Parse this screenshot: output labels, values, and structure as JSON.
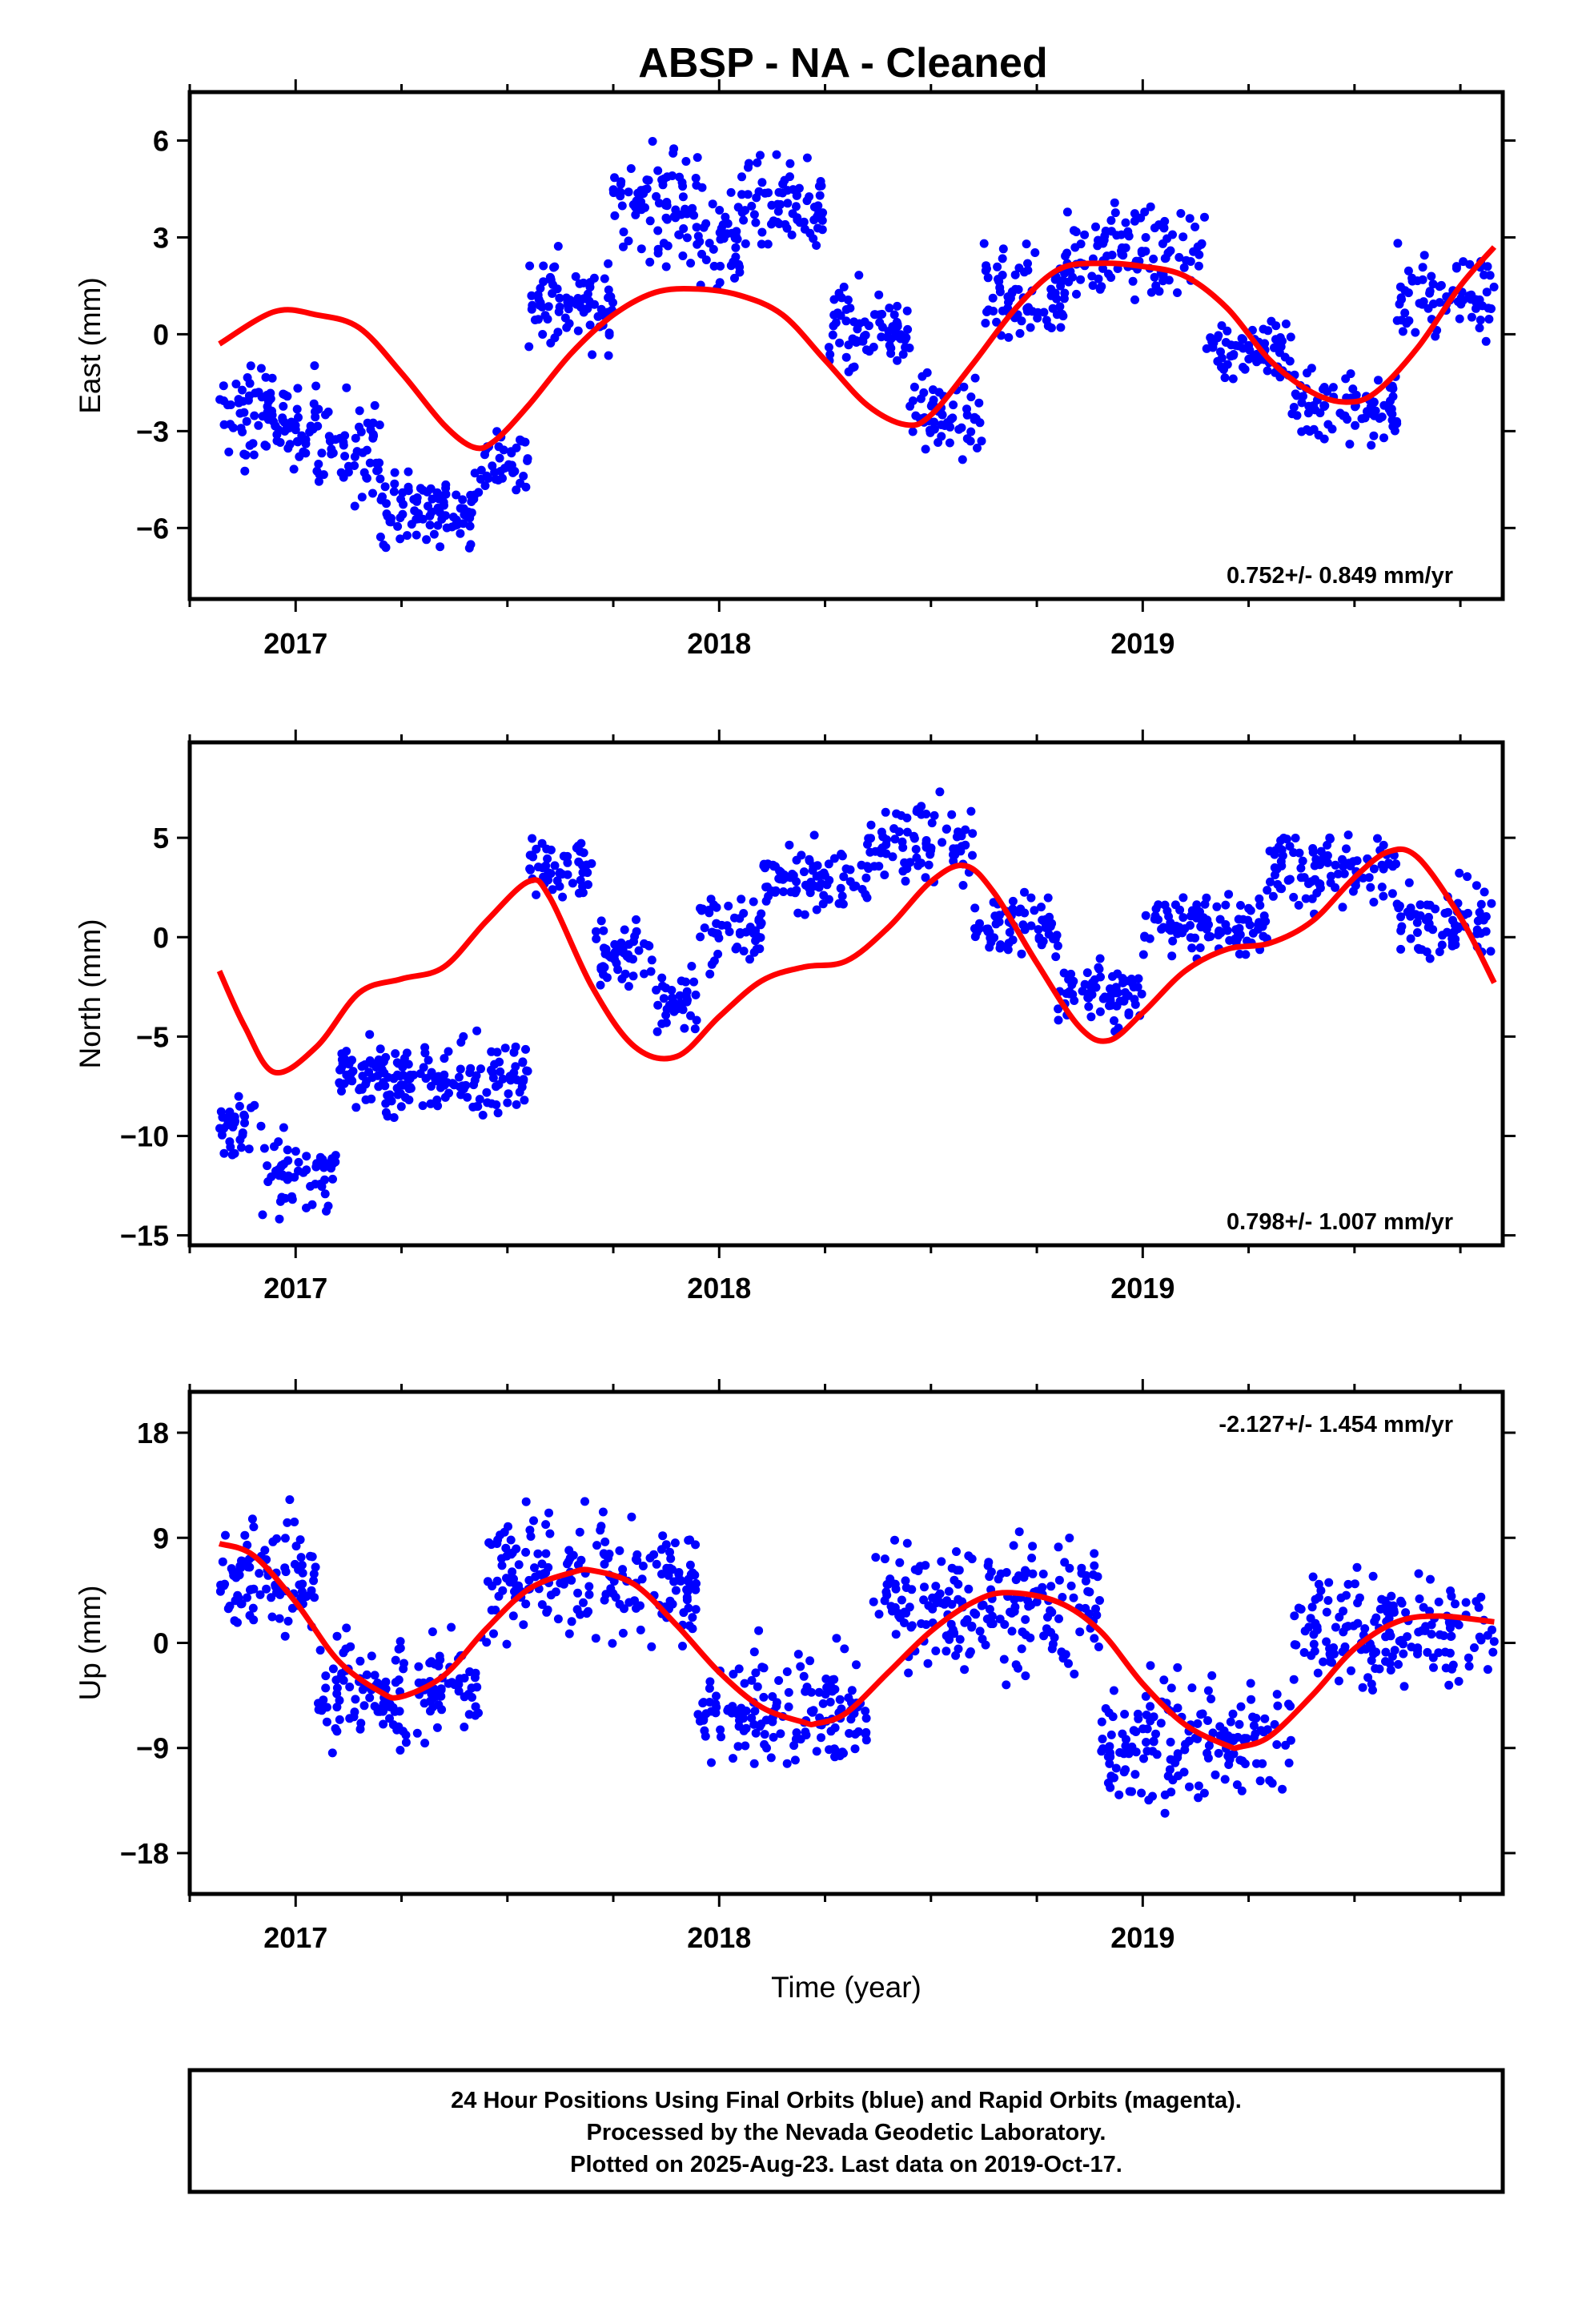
{
  "title": "ABSP  - NA - Cleaned",
  "colors": {
    "data": "#0000ff",
    "model": "#ff0000",
    "frame": "#000000"
  },
  "chart_data": [
    {
      "type": "scatter",
      "name": "east",
      "ylabel": "East (mm)",
      "xlabel": "",
      "xlim": [
        2016.75,
        2019.85
      ],
      "ylim": [
        -8.2,
        7.5
      ],
      "yticks": [
        -6,
        -3,
        0,
        3,
        6
      ],
      "ytick_labels": [
        "−6",
        "−3",
        "0",
        "3",
        "6"
      ],
      "xticks": [
        2017,
        2018,
        2019
      ],
      "xtick_labels": [
        "2017",
        "2018",
        "2019"
      ],
      "rate": "0.752+/- 0.849 mm/yr",
      "rate_position": "bottom-right",
      "model": {
        "x": [
          2016.82,
          2016.95,
          2017.05,
          2017.15,
          2017.25,
          2017.35,
          2017.42,
          2017.47,
          2017.55,
          2017.65,
          2017.75,
          2017.85,
          2017.95,
          2018.05,
          2018.15,
          2018.25,
          2018.35,
          2018.44,
          2018.5,
          2018.6,
          2018.7,
          2018.8,
          2018.9,
          2019.0,
          2019.1,
          2019.2,
          2019.3,
          2019.4,
          2019.48,
          2019.55,
          2019.65,
          2019.75,
          2019.83
        ],
        "y": [
          -0.3,
          0.7,
          0.6,
          0.2,
          -1.2,
          -2.8,
          -3.5,
          -3.3,
          -2.2,
          -0.6,
          0.6,
          1.3,
          1.4,
          1.2,
          0.6,
          -0.8,
          -2.2,
          -2.8,
          -2.5,
          -0.9,
          0.8,
          2.0,
          2.2,
          2.1,
          1.8,
          0.8,
          -0.8,
          -1.8,
          -2.1,
          -1.8,
          -0.4,
          1.5,
          2.7
        ]
      },
      "points": [
        {
          "x0": 2016.82,
          "x1": 2017.05,
          "mean": -2.6,
          "spread": 1.2,
          "count": 95
        },
        {
          "x0": 2017.05,
          "x1": 2017.2,
          "mean": -3.6,
          "spread": 1.4,
          "count": 55
        },
        {
          "x0": 2017.2,
          "x1": 2017.43,
          "mean": -5.4,
          "spread": 0.9,
          "count": 90
        },
        {
          "x0": 2017.43,
          "x1": 2017.55,
          "mean": -4.0,
          "spread": 1.0,
          "count": 40
        },
        {
          "x0": 2017.55,
          "x1": 2017.75,
          "mean": 1.0,
          "spread": 1.1,
          "count": 80
        },
        {
          "x0": 2017.75,
          "x1": 2017.95,
          "mean": 4.0,
          "spread": 1.5,
          "count": 80
        },
        {
          "x0": 2017.95,
          "x1": 2018.05,
          "mean": 2.8,
          "spread": 1.4,
          "count": 40
        },
        {
          "x0": 2018.05,
          "x1": 2018.25,
          "mean": 3.8,
          "spread": 1.2,
          "count": 75
        },
        {
          "x0": 2018.25,
          "x1": 2018.45,
          "mean": 0.2,
          "spread": 1.1,
          "count": 75
        },
        {
          "x0": 2018.45,
          "x1": 2018.62,
          "mean": -2.5,
          "spread": 1.0,
          "count": 60
        },
        {
          "x0": 2018.62,
          "x1": 2018.82,
          "mean": 1.2,
          "spread": 1.1,
          "count": 75
        },
        {
          "x0": 2018.82,
          "x1": 2019.15,
          "mean": 2.6,
          "spread": 1.1,
          "count": 110
        },
        {
          "x0": 2019.15,
          "x1": 2019.35,
          "mean": -0.5,
          "spread": 0.9,
          "count": 70
        },
        {
          "x0": 2019.35,
          "x1": 2019.6,
          "mean": -2.2,
          "spread": 1.0,
          "count": 85
        },
        {
          "x0": 2019.6,
          "x1": 2019.83,
          "mean": 1.2,
          "spread": 1.2,
          "count": 75
        }
      ]
    },
    {
      "type": "scatter",
      "name": "north",
      "ylabel": "North (mm)",
      "xlabel": "",
      "xlim": [
        2016.75,
        2019.85
      ],
      "ylim": [
        -15.5,
        9.8
      ],
      "yticks": [
        -15,
        -10,
        -5,
        0,
        5
      ],
      "ytick_labels": [
        "−15",
        "−10",
        "−5",
        "0",
        "5"
      ],
      "xticks": [
        2017,
        2018,
        2019
      ],
      "xtick_labels": [
        "2017",
        "2018",
        "2019"
      ],
      "rate": "0.798+/- 1.007 mm/yr",
      "rate_position": "bottom-right",
      "model": {
        "x": [
          2016.82,
          2016.88,
          2016.95,
          2017.05,
          2017.15,
          2017.25,
          2017.35,
          2017.45,
          2017.55,
          2017.6,
          2017.7,
          2017.8,
          2017.9,
          2018.0,
          2018.1,
          2018.2,
          2018.3,
          2018.4,
          2018.5,
          2018.58,
          2018.65,
          2018.75,
          2018.85,
          2018.92,
          2019.0,
          2019.1,
          2019.2,
          2019.3,
          2019.4,
          2019.5,
          2019.58,
          2019.65,
          2019.75,
          2019.83
        ],
        "y": [
          -1.7,
          -4.5,
          -6.8,
          -5.5,
          -2.8,
          -2.1,
          -1.5,
          0.8,
          2.8,
          2.0,
          -2.5,
          -5.5,
          -6.0,
          -4.0,
          -2.2,
          -1.5,
          -1.2,
          0.5,
          2.8,
          3.6,
          2.2,
          -1.3,
          -4.5,
          -5.2,
          -3.8,
          -1.7,
          -0.6,
          -0.3,
          0.8,
          3.0,
          4.3,
          4.0,
          1.0,
          -2.3
        ]
      },
      "points": [
        {
          "x0": 2016.82,
          "x1": 2016.92,
          "mean": -9.5,
          "spread": 1.2,
          "count": 35
        },
        {
          "x0": 2016.92,
          "x1": 2017.1,
          "mean": -12.0,
          "spread": 1.4,
          "count": 60
        },
        {
          "x0": 2017.1,
          "x1": 2017.55,
          "mean": -7.0,
          "spread": 1.4,
          "count": 180
        },
        {
          "x0": 2017.55,
          "x1": 2017.7,
          "mean": 3.5,
          "spread": 1.3,
          "count": 50
        },
        {
          "x0": 2017.7,
          "x1": 2017.85,
          "mean": -1.0,
          "spread": 1.6,
          "count": 50
        },
        {
          "x0": 2017.85,
          "x1": 2017.95,
          "mean": -3.5,
          "spread": 1.4,
          "count": 35
        },
        {
          "x0": 2017.95,
          "x1": 2018.1,
          "mean": 0.3,
          "spread": 1.4,
          "count": 50
        },
        {
          "x0": 2018.1,
          "x1": 2018.35,
          "mean": 2.8,
          "spread": 1.4,
          "count": 80
        },
        {
          "x0": 2018.35,
          "x1": 2018.6,
          "mean": 4.8,
          "spread": 1.5,
          "count": 80
        },
        {
          "x0": 2018.6,
          "x1": 2018.8,
          "mean": 0.5,
          "spread": 1.5,
          "count": 70
        },
        {
          "x0": 2018.8,
          "x1": 2019.0,
          "mean": -2.8,
          "spread": 1.3,
          "count": 70
        },
        {
          "x0": 2019.0,
          "x1": 2019.3,
          "mean": 0.6,
          "spread": 1.3,
          "count": 100
        },
        {
          "x0": 2019.3,
          "x1": 2019.6,
          "mean": 3.5,
          "spread": 1.5,
          "count": 100
        },
        {
          "x0": 2019.6,
          "x1": 2019.83,
          "mean": 0.8,
          "spread": 1.5,
          "count": 75
        }
      ]
    },
    {
      "type": "scatter",
      "name": "up",
      "ylabel": "Up (mm)",
      "xlabel": "Time (year)",
      "xlim": [
        2016.75,
        2019.85
      ],
      "ylim": [
        -21.5,
        21.5
      ],
      "yticks": [
        -18,
        -9,
        0,
        9,
        18
      ],
      "ytick_labels": [
        "−18",
        "−9",
        "0",
        "9",
        "18"
      ],
      "xticks": [
        2017,
        2018,
        2019
      ],
      "xtick_labels": [
        "2017",
        "2018",
        "2019"
      ],
      "rate": "-2.127+/- 1.454 mm/yr",
      "rate_position": "top-right",
      "model": {
        "x": [
          2016.82,
          2016.9,
          2017.0,
          2017.1,
          2017.2,
          2017.25,
          2017.35,
          2017.45,
          2017.55,
          2017.65,
          2017.7,
          2017.8,
          2017.9,
          2018.0,
          2018.1,
          2018.2,
          2018.23,
          2018.3,
          2018.4,
          2018.5,
          2018.6,
          2018.68,
          2018.8,
          2018.9,
          2019.0,
          2019.1,
          2019.2,
          2019.23,
          2019.3,
          2019.4,
          2019.5,
          2019.6,
          2019.7,
          2019.83
        ],
        "y": [
          8.5,
          7.5,
          3.5,
          -1.5,
          -4.2,
          -4.6,
          -2.8,
          1.2,
          4.6,
          6.0,
          6.2,
          5.0,
          1.5,
          -2.5,
          -5.5,
          -6.8,
          -6.9,
          -6.0,
          -2.5,
          1.0,
          3.5,
          4.3,
          3.5,
          1.0,
          -3.5,
          -7.0,
          -8.8,
          -8.9,
          -8.0,
          -4.5,
          -0.5,
          1.8,
          2.3,
          1.8
        ]
      },
      "points": [
        {
          "x0": 2016.82,
          "x1": 2017.05,
          "mean": 5.5,
          "spread": 4.0,
          "count": 95
        },
        {
          "x0": 2017.05,
          "x1": 2017.45,
          "mean": -4.0,
          "spread": 4.0,
          "count": 150
        },
        {
          "x0": 2017.45,
          "x1": 2017.95,
          "mean": 5.5,
          "spread": 4.5,
          "count": 190
        },
        {
          "x0": 2017.95,
          "x1": 2018.35,
          "mean": -6.0,
          "spread": 4.0,
          "count": 150
        },
        {
          "x0": 2018.35,
          "x1": 2018.9,
          "mean": 3.5,
          "spread": 4.5,
          "count": 200
        },
        {
          "x0": 2018.9,
          "x1": 2019.35,
          "mean": -8.5,
          "spread": 4.5,
          "count": 160
        },
        {
          "x0": 2019.35,
          "x1": 2019.83,
          "mean": 1.0,
          "spread": 4.0,
          "count": 170
        }
      ]
    }
  ],
  "footer": {
    "line1": "24 Hour Positions Using Final Orbits (blue) and Rapid Orbits (magenta).",
    "line2": "Processed by the Nevada Geodetic Laboratory.",
    "line3": "Plotted on 2025-Aug-23. Last data on 2019-Oct-17."
  }
}
